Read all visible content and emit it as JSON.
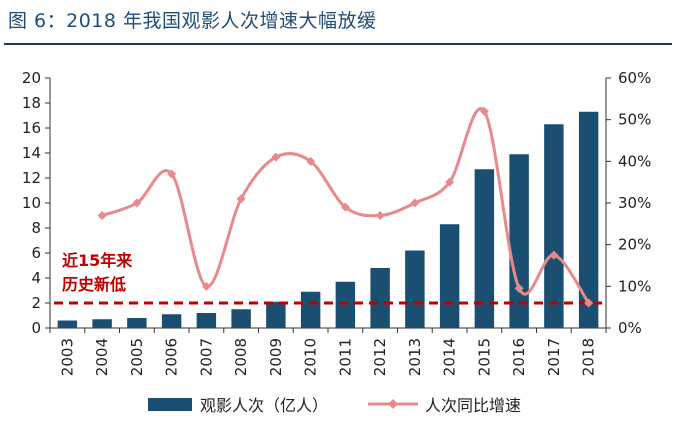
{
  "title": "图 6：2018 年我国观影人次增速大幅放缓",
  "chart_data": {
    "type": "bar+line",
    "categories": [
      "2003",
      "2004",
      "2005",
      "2006",
      "2007",
      "2008",
      "2009",
      "2010",
      "2011",
      "2012",
      "2013",
      "2014",
      "2015",
      "2016",
      "2017",
      "2018"
    ],
    "series": [
      {
        "name": "观影人次（亿人）",
        "type": "bar",
        "axis": "left",
        "color": "#1b4f72",
        "values": [
          0.6,
          0.7,
          0.8,
          1.1,
          1.2,
          1.5,
          2.1,
          2.9,
          3.7,
          4.8,
          6.2,
          8.3,
          12.7,
          13.9,
          16.3,
          17.3
        ]
      },
      {
        "name": "人次同比增速",
        "type": "line",
        "axis": "right",
        "color": "#e8898c",
        "values": [
          null,
          27,
          30,
          37,
          10,
          31,
          41,
          40,
          29,
          27,
          30,
          35,
          52,
          9.5,
          17.5,
          6
        ]
      }
    ],
    "y_left": {
      "min": 0,
      "max": 20,
      "ticks": [
        "0",
        "2",
        "4",
        "6",
        "8",
        "10",
        "12",
        "14",
        "16",
        "18",
        "20"
      ]
    },
    "y_right": {
      "min": 0,
      "max": 60,
      "ticks": [
        "0%",
        "10%",
        "20%",
        "30%",
        "40%",
        "50%",
        "60%"
      ]
    },
    "reference_line": {
      "value": 2,
      "axis": "left",
      "color": "#c00000",
      "style": "dashed"
    },
    "annotation": {
      "lines": [
        "近15年来",
        "历史新低"
      ],
      "color": "#c00000"
    },
    "legend": {
      "placement": "bottom"
    }
  }
}
